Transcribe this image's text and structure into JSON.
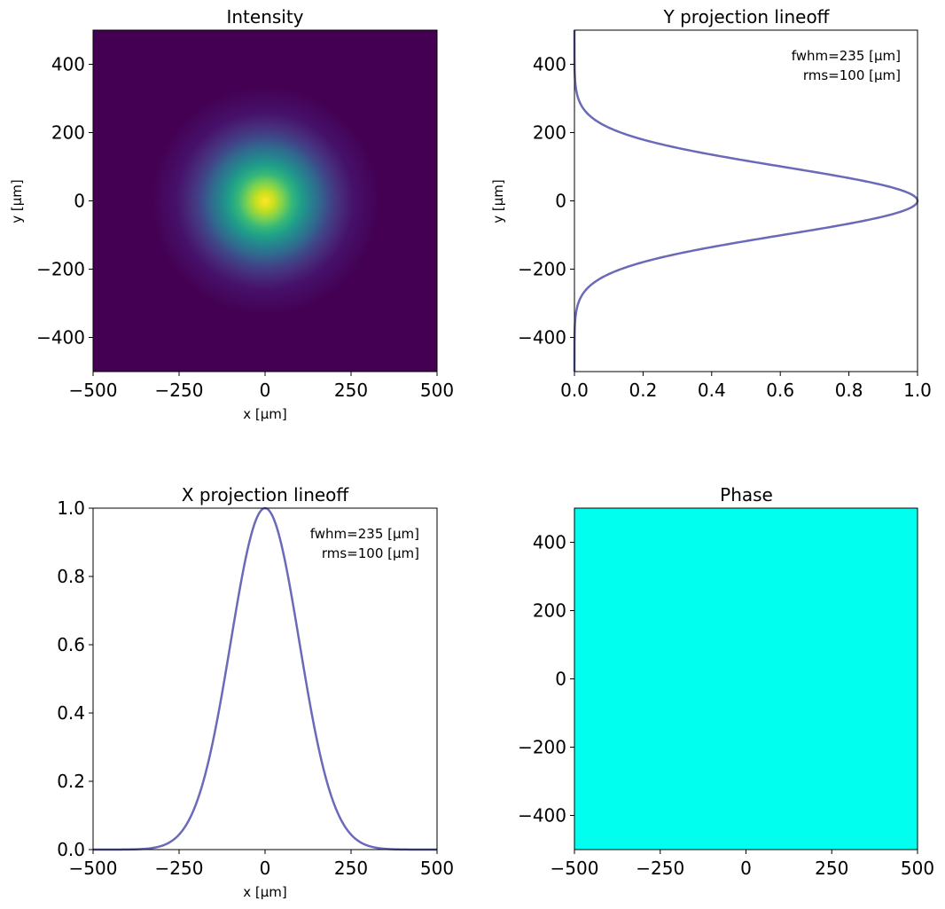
{
  "chart_data": [
    {
      "type": "heatmap",
      "title": "Intensity",
      "xlabel": "x [μm]",
      "ylabel": "y [μm]",
      "xlim": [
        -500,
        500
      ],
      "ylim": [
        -500,
        500
      ],
      "x_ticks": [
        -500,
        -250,
        0,
        250,
        500
      ],
      "y_ticks": [
        -400,
        -200,
        0,
        200,
        400
      ],
      "x_tick_labels": [
        "−500",
        "−250",
        "0",
        "250",
        "500"
      ],
      "y_tick_labels": [
        "−400",
        "−200",
        "0",
        "200",
        "400"
      ],
      "center": [
        0,
        0
      ],
      "rms": 100,
      "colormap": "viridis"
    },
    {
      "type": "line",
      "title": "Y projection lineoff",
      "xlabel": "",
      "ylabel": "y [μm]",
      "xlim": [
        0,
        1
      ],
      "ylim": [
        -500,
        500
      ],
      "x_ticks": [
        0,
        0.2,
        0.4,
        0.6,
        0.8,
        1.0
      ],
      "y_ticks": [
        -400,
        -200,
        0,
        200,
        400
      ],
      "x_tick_labels": [
        "0.0",
        "0.2",
        "0.4",
        "0.6",
        "0.8",
        "1.0"
      ],
      "y_tick_labels": [
        "−400",
        "−200",
        "0",
        "200",
        "400"
      ],
      "profile": {
        "center": 0,
        "rms": 100,
        "peak": 1.0,
        "orientation": "vertical"
      },
      "annotations": [
        "fwhm=235  [μm]",
        "rms=100 [μm]"
      ],
      "line_color": "#6a6ab8"
    },
    {
      "type": "line",
      "title": "X projection lineoff",
      "xlabel": "x [μm]",
      "ylabel": "",
      "xlim": [
        -500,
        500
      ],
      "ylim": [
        0,
        1
      ],
      "x_ticks": [
        -500,
        -250,
        0,
        250,
        500
      ],
      "y_ticks": [
        0,
        0.2,
        0.4,
        0.6,
        0.8,
        1.0
      ],
      "x_tick_labels": [
        "−500",
        "−250",
        "0",
        "250",
        "500"
      ],
      "y_tick_labels": [
        "0.0",
        "0.2",
        "0.4",
        "0.6",
        "0.8",
        "1.0"
      ],
      "profile": {
        "center": 0,
        "rms": 100,
        "peak": 1.0,
        "orientation": "horizontal"
      },
      "annotations": [
        "fwhm=235  [μm]",
        "rms=100 [μm]"
      ],
      "line_color": "#6a6ab8"
    },
    {
      "type": "heatmap",
      "title": "Phase",
      "xlabel": "",
      "ylabel": "",
      "xlim": [
        -500,
        500
      ],
      "ylim": [
        -500,
        500
      ],
      "x_ticks": [
        -500,
        -250,
        0,
        250,
        500
      ],
      "y_ticks": [
        -400,
        -200,
        0,
        200,
        400
      ],
      "x_tick_labels": [
        "−500",
        "−250",
        "0",
        "250",
        "500"
      ],
      "y_tick_labels": [
        "−400",
        "−200",
        "0",
        "200",
        "400"
      ],
      "fill_color": "#00ffee"
    }
  ]
}
